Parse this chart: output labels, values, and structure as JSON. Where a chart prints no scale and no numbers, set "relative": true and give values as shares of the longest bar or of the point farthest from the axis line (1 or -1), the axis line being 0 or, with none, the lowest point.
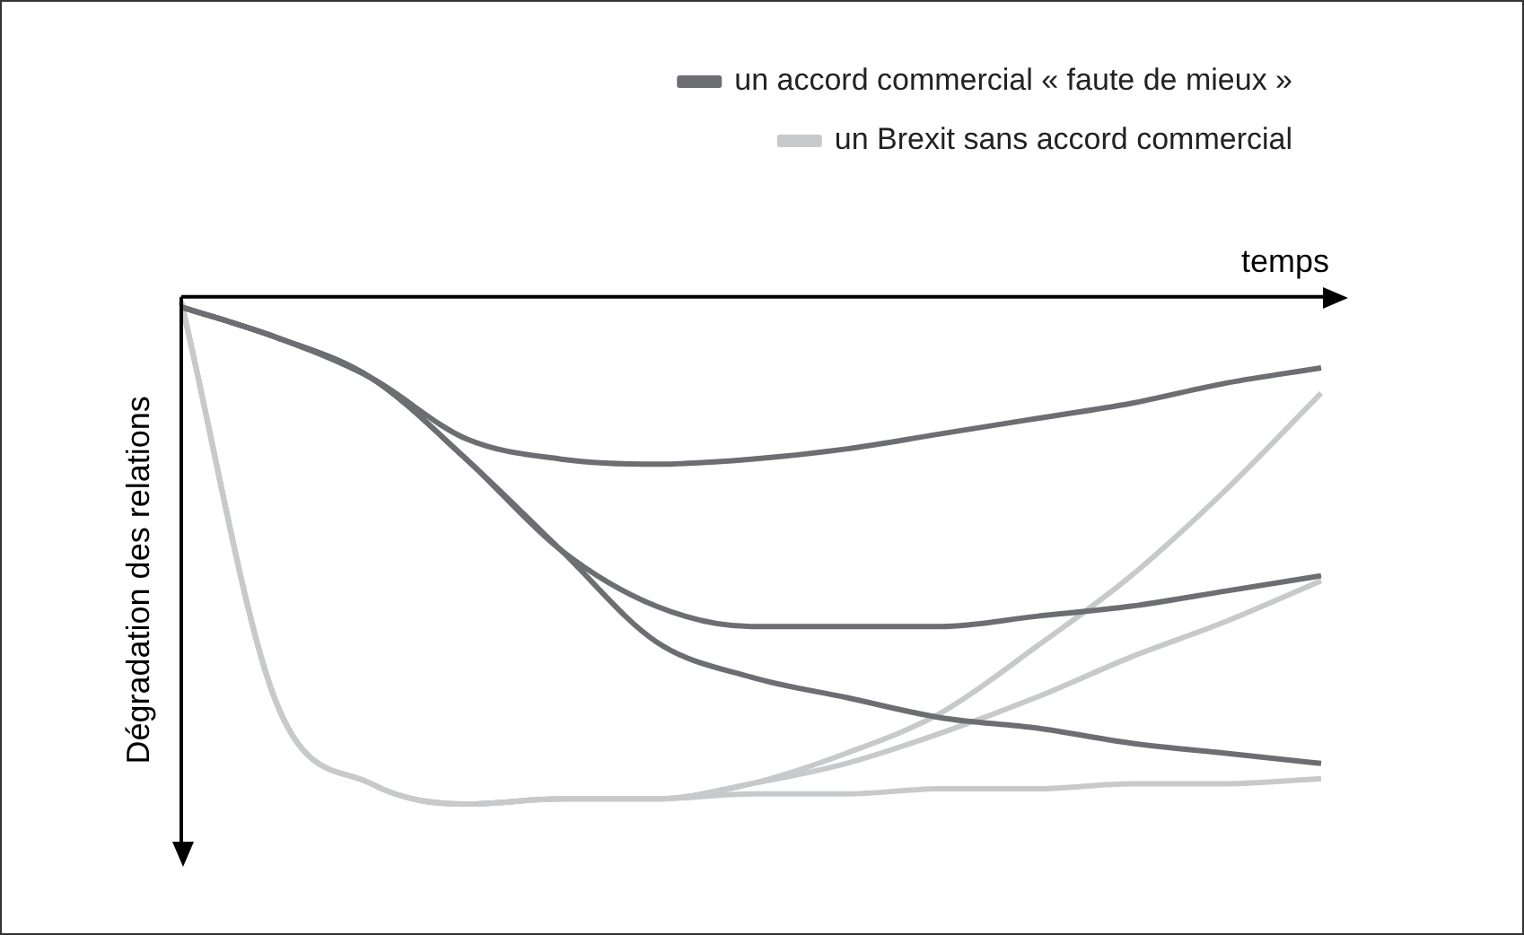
{
  "chart_data": {
    "type": "line",
    "relative": true,
    "xlabel": "temps",
    "ylabel": "Dégradation des relations",
    "legend": "top right",
    "marker": "none",
    "line_style": "solid",
    "categories": [
      null,
      null,
      null,
      null,
      null,
      null,
      null,
      null,
      null,
      null,
      null,
      null,
      null
    ],
    "series": [
      {
        "name": "un accord commercial « faute de mieux »",
        "color": "#6d6e71",
        "values": [
          -0.02,
          -0.08,
          -0.16,
          -0.28,
          -0.32,
          -0.33,
          -0.32,
          -0.3,
          -0.27,
          -0.24,
          -0.21,
          -0.17,
          -0.14
        ]
      },
      {
        "color": "#6d6e71",
        "values": [
          -0.02,
          -0.08,
          -0.16,
          -0.32,
          -0.5,
          -0.61,
          -0.65,
          -0.65,
          -0.65,
          -0.63,
          -0.61,
          -0.58,
          -0.55
        ]
      },
      {
        "color": "#6d6e71",
        "values": [
          -0.02,
          -0.08,
          -0.16,
          -0.32,
          -0.5,
          -0.68,
          -0.75,
          -0.79,
          -0.83,
          -0.85,
          -0.88,
          -0.9,
          -0.92
        ]
      },
      {
        "name": "un Brexit sans accord commercial",
        "color": "#c8c9cb",
        "values": [
          -0.01,
          -0.8,
          -0.96,
          -1,
          -0.99,
          -0.99,
          -0.96,
          -0.9,
          -0.82,
          -0.69,
          -0.55,
          -0.38,
          -0.19
        ]
      },
      {
        "color": "#c8c9cb",
        "values": [
          -0.01,
          -0.8,
          -0.96,
          -1,
          -0.99,
          -0.99,
          -0.96,
          -0.92,
          -0.86,
          -0.79,
          -0.71,
          -0.64,
          -0.56
        ]
      },
      {
        "color": "#c8c9cb",
        "values": [
          -0.01,
          -0.8,
          -0.96,
          -1,
          -0.99,
          -0.99,
          -0.98,
          -0.98,
          -0.97,
          -0.97,
          -0.96,
          -0.96,
          -0.95
        ]
      }
    ]
  }
}
